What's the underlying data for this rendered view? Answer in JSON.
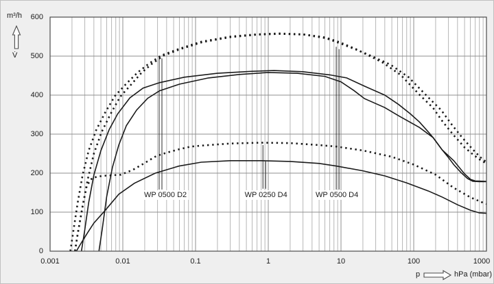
{
  "units": {
    "flow_unit": "m³/h",
    "flow_symbol": "V̇",
    "pressure_symbol": "p",
    "pressure_unit": "hPa (mbar)"
  },
  "colors": {
    "page_bg": "#efefef",
    "plot_bg": "#ffffff",
    "grid_major": "#8f8f8f",
    "grid_minor": "#b6b6b6",
    "plot_border": "#4a4a4a",
    "curve": "#1a1a1a",
    "leader": "#2a2a2a",
    "text": "#1a1a1a"
  },
  "chart_data": {
    "type": "line",
    "x_axis": {
      "scale": "log",
      "min": 0.001,
      "max": 1000,
      "tick_labels": [
        "0.001",
        "0.01",
        "0.1",
        "1",
        "10",
        "100",
        "1000"
      ],
      "tick_values": [
        0.001,
        0.01,
        0.1,
        1,
        10,
        100,
        1000
      ]
    },
    "y_axis": {
      "min": 0,
      "max": 600,
      "tick_step": 100,
      "tick_labels": [
        "0",
        "100",
        "200",
        "300",
        "400",
        "500",
        "600"
      ],
      "tick_values": [
        0,
        100,
        200,
        300,
        400,
        500,
        600
      ]
    },
    "grid": "on",
    "series": [
      {
        "name": "WP 0500 D2",
        "style": "solid",
        "points": [
          [
            0.0027,
            0
          ],
          [
            0.003,
            55
          ],
          [
            0.0034,
            125
          ],
          [
            0.004,
            195
          ],
          [
            0.005,
            258
          ],
          [
            0.0065,
            312
          ],
          [
            0.0085,
            352
          ],
          [
            0.0125,
            393
          ],
          [
            0.019,
            418
          ],
          [
            0.032,
            432
          ],
          [
            0.07,
            446
          ],
          [
            0.2,
            456
          ],
          [
            0.6,
            461
          ],
          [
            1.2,
            463
          ],
          [
            3,
            460
          ],
          [
            7,
            452
          ],
          [
            12,
            444
          ],
          [
            21,
            423
          ],
          [
            40,
            400
          ],
          [
            62,
            376
          ],
          [
            90,
            352
          ],
          [
            120,
            331
          ],
          [
            160,
            305
          ],
          [
            185,
            291
          ],
          [
            245,
            260
          ],
          [
            300,
            240
          ],
          [
            355,
            222
          ],
          [
            450,
            201
          ],
          [
            550,
            186
          ],
          [
            650,
            179
          ],
          [
            800,
            178
          ],
          [
            1000,
            178
          ]
        ]
      },
      {
        "name": "WP 0500 D4",
        "style": "solid",
        "points": [
          [
            0.0047,
            0
          ],
          [
            0.0052,
            55
          ],
          [
            0.006,
            140
          ],
          [
            0.0072,
            215
          ],
          [
            0.0088,
            272
          ],
          [
            0.0112,
            322
          ],
          [
            0.0155,
            362
          ],
          [
            0.022,
            392
          ],
          [
            0.032,
            411
          ],
          [
            0.06,
            428
          ],
          [
            0.15,
            444
          ],
          [
            0.4,
            453
          ],
          [
            1,
            458
          ],
          [
            2.5,
            456
          ],
          [
            6,
            448
          ],
          [
            10,
            434
          ],
          [
            15,
            412
          ],
          [
            21,
            391
          ],
          [
            40,
            368
          ],
          [
            62,
            347
          ],
          [
            120,
            317
          ],
          [
            185,
            291
          ],
          [
            245,
            260
          ],
          [
            355,
            232
          ],
          [
            500,
            198
          ],
          [
            604,
            184
          ],
          [
            700,
            180
          ],
          [
            1000,
            179
          ]
        ]
      },
      {
        "name": "WP 0250 D4",
        "style": "solid",
        "points": [
          [
            0.0023,
            0
          ],
          [
            0.0027,
            22
          ],
          [
            0.0033,
            48
          ],
          [
            0.004,
            72
          ],
          [
            0.0057,
            104
          ],
          [
            0.0088,
            146
          ],
          [
            0.0144,
            174
          ],
          [
            0.028,
            200
          ],
          [
            0.059,
            218
          ],
          [
            0.12,
            228
          ],
          [
            0.3,
            232
          ],
          [
            0.8,
            232
          ],
          [
            2,
            230
          ],
          [
            5,
            225
          ],
          [
            8.7,
            218
          ],
          [
            20,
            206
          ],
          [
            40,
            193
          ],
          [
            80,
            175
          ],
          [
            160,
            154
          ],
          [
            250,
            138
          ],
          [
            400,
            119
          ],
          [
            600,
            105
          ],
          [
            800,
            98
          ],
          [
            1000,
            97
          ]
        ]
      },
      {
        "name": "WP 0500 D2",
        "style": "dotted",
        "points": [
          [
            0.0019,
            0
          ],
          [
            0.0021,
            55
          ],
          [
            0.0024,
            125
          ],
          [
            0.0028,
            195
          ],
          [
            0.0034,
            258
          ],
          [
            0.0043,
            310
          ],
          [
            0.0057,
            355
          ],
          [
            0.0078,
            398
          ],
          [
            0.011,
            428
          ],
          [
            0.016,
            458
          ],
          [
            0.023,
            481
          ],
          [
            0.034,
            502
          ],
          [
            0.06,
            519
          ],
          [
            0.12,
            537
          ],
          [
            0.3,
            550
          ],
          [
            0.7,
            556
          ],
          [
            1.4,
            558
          ],
          [
            3,
            556
          ],
          [
            6,
            548
          ],
          [
            9.5,
            536
          ],
          [
            16,
            518
          ],
          [
            37,
            484
          ],
          [
            66,
            452
          ],
          [
            120,
            401
          ],
          [
            185,
            367
          ],
          [
            250,
            332
          ],
          [
            355,
            297
          ],
          [
            500,
            266
          ],
          [
            650,
            248
          ],
          [
            850,
            232
          ],
          [
            1000,
            225
          ]
        ]
      },
      {
        "name": "WP 0500 D4",
        "style": "dotted",
        "points": [
          [
            0.0022,
            0
          ],
          [
            0.0024,
            45
          ],
          [
            0.0028,
            115
          ],
          [
            0.0033,
            185
          ],
          [
            0.004,
            250
          ],
          [
            0.0051,
            305
          ],
          [
            0.0068,
            352
          ],
          [
            0.0092,
            396
          ],
          [
            0.013,
            427
          ],
          [
            0.018,
            457
          ],
          [
            0.025,
            480
          ],
          [
            0.036,
            501
          ],
          [
            0.062,
            518
          ],
          [
            0.125,
            536
          ],
          [
            0.31,
            549
          ],
          [
            0.72,
            555
          ],
          [
            1.45,
            557
          ],
          [
            3.1,
            555
          ],
          [
            6.2,
            546
          ],
          [
            10,
            532
          ],
          [
            21,
            508
          ],
          [
            48,
            478
          ],
          [
            85,
            446
          ],
          [
            155,
            396
          ],
          [
            240,
            361
          ],
          [
            325,
            327
          ],
          [
            460,
            292
          ],
          [
            640,
            262
          ],
          [
            820,
            241
          ],
          [
            1000,
            228
          ]
        ]
      },
      {
        "name": "WP 0250 D4",
        "style": "dotted",
        "points": [
          [
            0.0022,
            0
          ],
          [
            0.0024,
            45
          ],
          [
            0.0028,
            115
          ],
          [
            0.0032,
            168
          ],
          [
            0.0038,
            188
          ],
          [
            0.0052,
            193
          ],
          [
            0.0094,
            196
          ],
          [
            0.0139,
            209
          ],
          [
            0.02,
            226
          ],
          [
            0.029,
            244
          ],
          [
            0.041,
            253
          ],
          [
            0.059,
            261
          ],
          [
            0.086,
            268
          ],
          [
            0.13,
            271
          ],
          [
            0.3,
            276
          ],
          [
            0.8,
            278
          ],
          [
            2,
            277
          ],
          [
            5,
            272
          ],
          [
            8.7,
            268
          ],
          [
            20,
            258
          ],
          [
            50,
            242
          ],
          [
            100,
            222
          ],
          [
            200,
            196
          ],
          [
            350,
            163
          ],
          [
            600,
            138
          ],
          [
            900,
            124
          ],
          [
            1000,
            121
          ]
        ]
      }
    ],
    "curve_labels": [
      {
        "text": "WP 0500 D2",
        "p": 0.0385,
        "v": 144,
        "leaders": [
          {
            "p": 0.0316,
            "v_from": 158,
            "v_to": 500
          },
          {
            "p": 0.0345,
            "v_from": 158,
            "v_to": 494
          }
        ]
      },
      {
        "text": "WP 0250 D4",
        "p": 0.93,
        "v": 144,
        "leaders": [
          {
            "p": 0.845,
            "v_from": 160,
            "v_to": 272
          },
          {
            "p": 0.92,
            "v_from": 160,
            "v_to": 230
          }
        ]
      },
      {
        "text": "WP 0500 D4",
        "p": 8.8,
        "v": 144,
        "leaders": [
          {
            "p": 8.6,
            "v_from": 158,
            "v_to": 524
          },
          {
            "p": 9.4,
            "v_from": 158,
            "v_to": 518
          }
        ]
      }
    ]
  }
}
